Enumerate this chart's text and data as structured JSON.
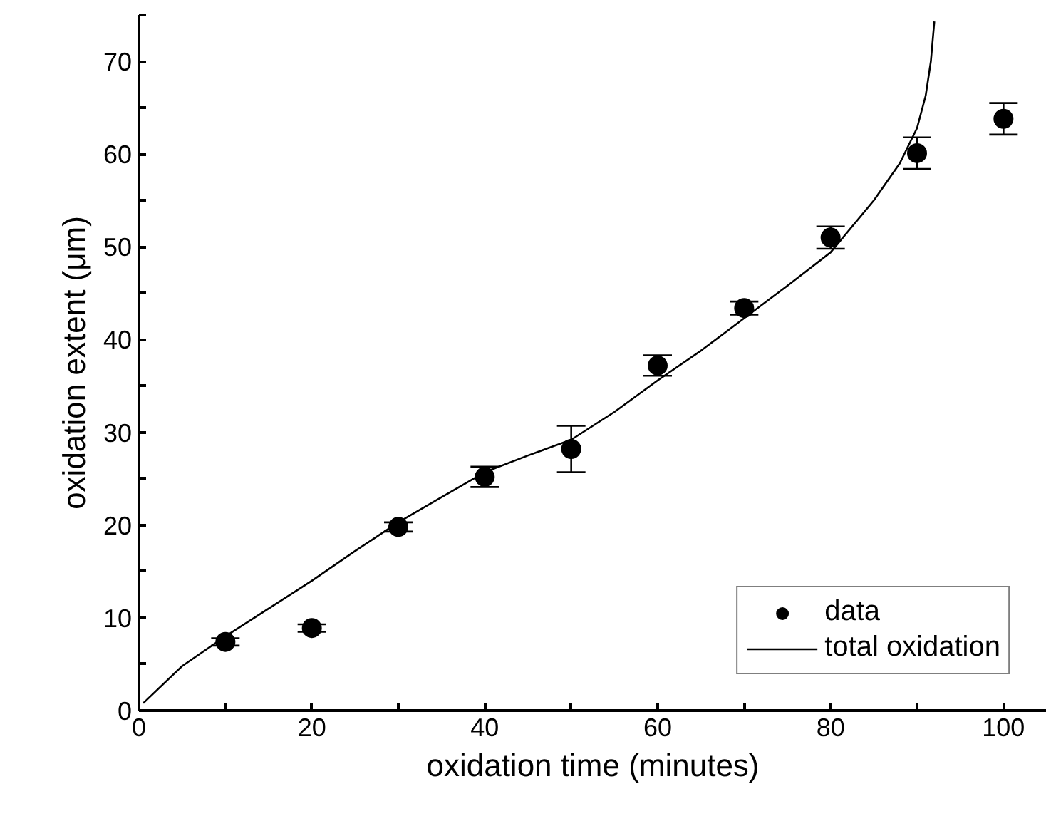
{
  "chart_data": {
    "type": "scatter",
    "xlabel": "oxidation time (minutes)",
    "ylabel": "oxidation extent (μm)",
    "xlim": [
      0,
      105
    ],
    "ylim": [
      0,
      75
    ],
    "xticks": [
      0,
      {
        "value": 10,
        "label": null
      },
      20,
      {
        "value": 30,
        "label": null
      },
      40,
      {
        "value": 50,
        "label": null
      },
      60,
      {
        "value": 70,
        "label": null
      },
      80,
      {
        "value": 90,
        "label": null
      },
      100
    ],
    "yticks": [
      0,
      {
        "value": 5,
        "label": null
      },
      10,
      {
        "value": 15,
        "label": null
      },
      20,
      {
        "value": 25,
        "label": null
      },
      30,
      {
        "value": 35,
        "label": null
      },
      40,
      {
        "value": 45,
        "label": null
      },
      50,
      {
        "value": 55,
        "label": null
      },
      60,
      {
        "value": 65,
        "label": null
      },
      70,
      {
        "value": 75,
        "label": null
      }
    ],
    "legend": "bottom right",
    "grid": false,
    "marker": "circle",
    "series": [
      {
        "name": "data",
        "color": "#000000",
        "x": [
          10,
          20,
          30,
          40,
          50,
          60,
          70,
          80,
          90,
          100
        ],
        "values": [
          7.4,
          8.9,
          19.8,
          25.2,
          28.2,
          37.2,
          43.4,
          51.0,
          60.1,
          63.8
        ],
        "errors": [
          0.4,
          0.4,
          0.5,
          1.1,
          2.5,
          1.1,
          0.7,
          1.2,
          1.7,
          1.7
        ]
      },
      {
        "name": "total oxidation",
        "type": "line",
        "color": "#000000",
        "marker": "none",
        "x": [
          0.5,
          5,
          10,
          15,
          20,
          25,
          30,
          35,
          40,
          45,
          50,
          55,
          60,
          65,
          70,
          75,
          80,
          85,
          88,
          90,
          91,
          91.6,
          92
        ],
        "values": [
          0.8,
          4.8,
          8.0,
          11.0,
          14.0,
          17.2,
          20.3,
          23.0,
          25.7,
          27.5,
          29.2,
          32.2,
          35.6,
          38.8,
          42.3,
          45.8,
          49.4,
          55.0,
          59.0,
          62.8,
          66.3,
          70.0,
          74.3
        ]
      }
    ]
  }
}
